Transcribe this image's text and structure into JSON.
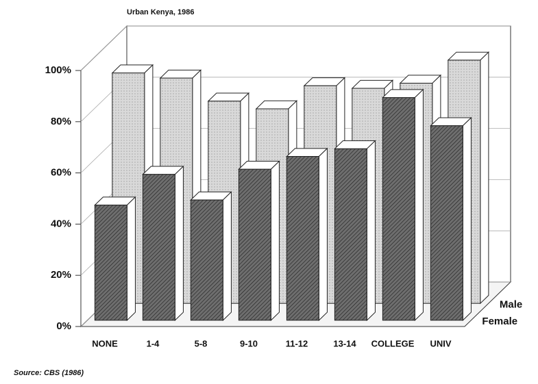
{
  "chart_data": {
    "type": "bar3d",
    "title": "Urban Kenya, 1986",
    "source": "Source: CBS (1986)",
    "categories": [
      "NONE",
      "1-4",
      "5-8",
      "9-10",
      "11-12",
      "13-14",
      "COLLEGE",
      "UNIV"
    ],
    "series": [
      {
        "name": "Female",
        "color": "#6e6e6e",
        "values": [
          45,
          57,
          47,
          59,
          64,
          67,
          87,
          76
        ]
      },
      {
        "name": "Male",
        "color": "#d9d9d9",
        "values": [
          90,
          88,
          79,
          76,
          85,
          84,
          86,
          95
        ]
      }
    ],
    "ylim": [
      0,
      100
    ],
    "yticks": [
      {
        "value": 0,
        "label": "0%"
      },
      {
        "value": 20,
        "label": "20%"
      },
      {
        "value": 40,
        "label": "40%"
      },
      {
        "value": 60,
        "label": "60%"
      },
      {
        "value": 80,
        "label": "80%"
      },
      {
        "value": 100,
        "label": "100%"
      }
    ],
    "grid": true
  }
}
